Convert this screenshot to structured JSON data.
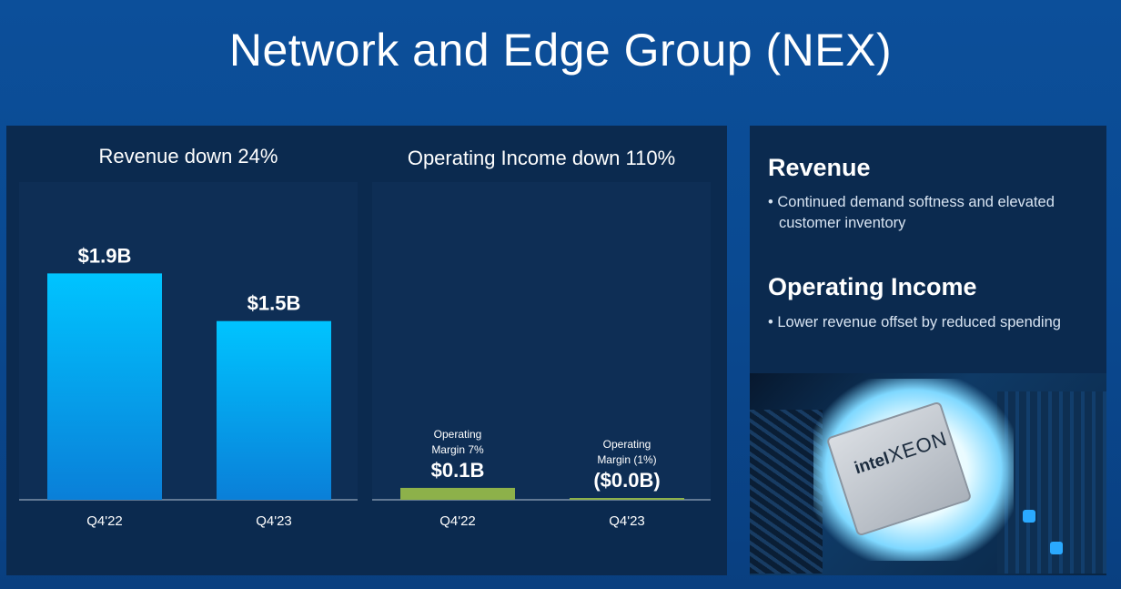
{
  "title": "Network and Edge Group (NEX)",
  "colors": {
    "revenue_bar_top": "#00c4ff",
    "revenue_bar_bottom": "#0a7fd8",
    "operating_income_bar": "#8db14a",
    "axis_line": "#7f93ab",
    "text": "#ffffff"
  },
  "chart_data": [
    {
      "type": "bar",
      "title": "Revenue down 24%",
      "categories": [
        "Q4'22",
        "Q4'23"
      ],
      "values": [
        1.9,
        1.5
      ],
      "data_labels": [
        "$1.9B",
        "$1.5B"
      ],
      "units": "$B",
      "ylim": [
        0,
        2.3
      ],
      "grid": false
    },
    {
      "type": "bar",
      "title": "Operating Income down 110%",
      "categories": [
        "Q4'22",
        "Q4'23"
      ],
      "values": [
        0.1,
        -0.0
      ],
      "data_labels": [
        "$0.1B",
        "($0.0B)"
      ],
      "annotations": [
        [
          "Operating",
          "Margin 7%"
        ],
        [
          "Operating",
          "Margin (1%)"
        ]
      ],
      "units": "$B",
      "ylim": [
        0,
        2.3
      ],
      "grid": false
    }
  ],
  "sidebar": {
    "sections": [
      {
        "heading": "Revenue",
        "bullet": "• Continued demand softness and elevated customer inventory"
      },
      {
        "heading": "Operating Income",
        "bullet": "• Lower revenue offset by reduced spending"
      }
    ],
    "photo": {
      "logo_top": "intel",
      "logo_bottom": "XEON"
    }
  }
}
